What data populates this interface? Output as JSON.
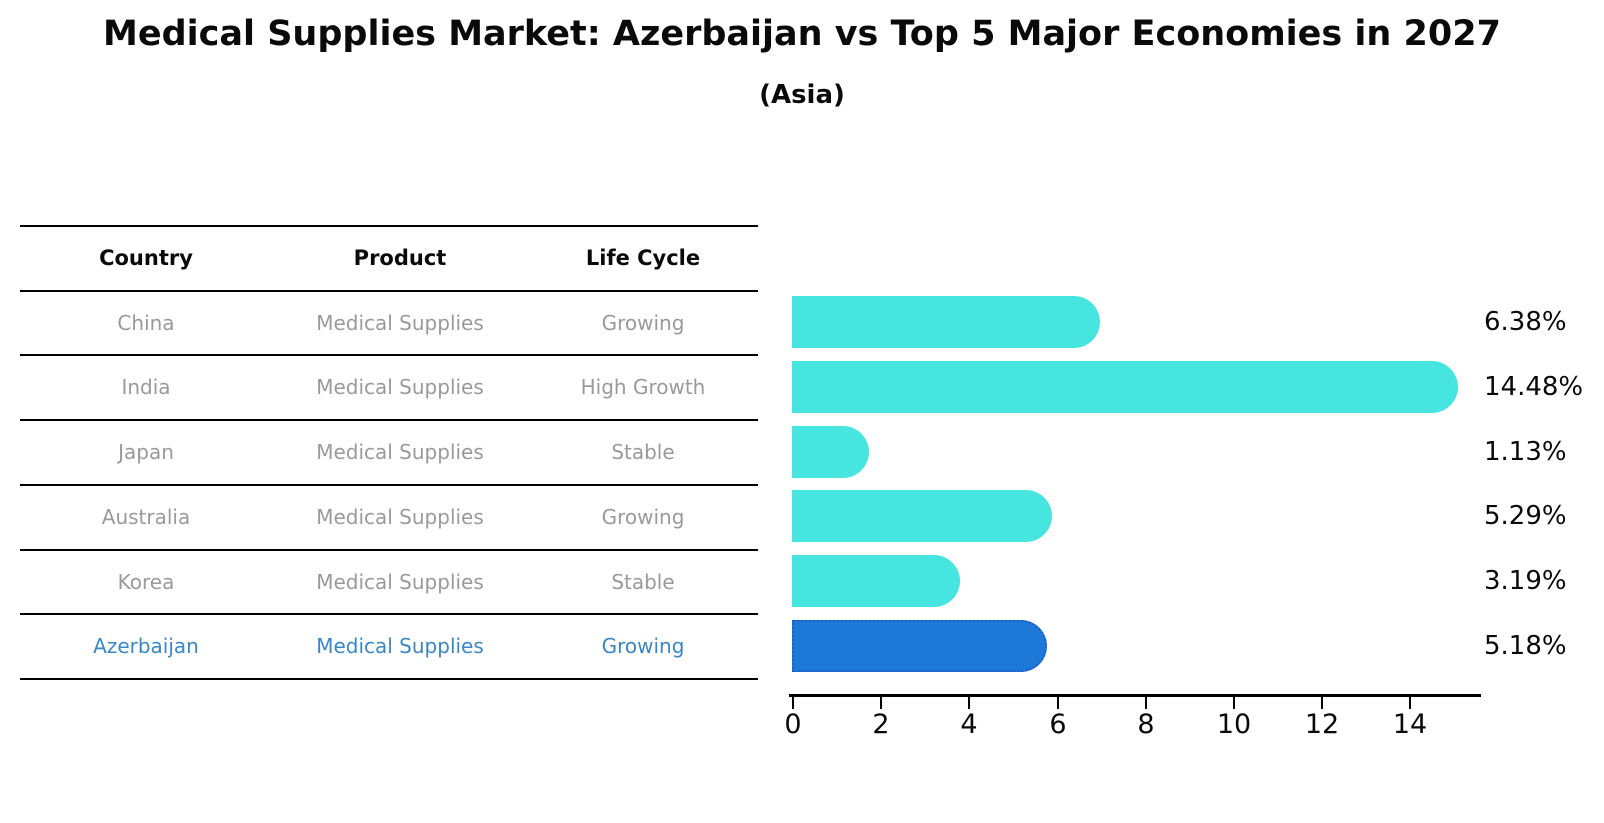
{
  "title": "Medical Supplies Market: Azerbaijan vs Top 5 Major Economies in 2027",
  "subtitle": "(Asia)",
  "table": {
    "headers": [
      "Country",
      "Product",
      "Life Cycle"
    ],
    "rows": [
      {
        "country": "China",
        "product": "Medical Supplies",
        "life_cycle": "Growing"
      },
      {
        "country": "India",
        "product": "Medical Supplies",
        "life_cycle": "High Growth"
      },
      {
        "country": "Japan",
        "product": "Medical Supplies",
        "life_cycle": "Stable"
      },
      {
        "country": "Australia",
        "product": "Medical Supplies",
        "life_cycle": "Growing"
      },
      {
        "country": "Korea",
        "product": "Medical Supplies",
        "life_cycle": "Stable"
      },
      {
        "country": "Azerbaijan",
        "product": "Medical Supplies",
        "life_cycle": "Growing"
      }
    ]
  },
  "chart_data": {
    "type": "bar",
    "orientation": "horizontal",
    "categories": [
      "China",
      "India",
      "Japan",
      "Australia",
      "Korea",
      "Azerbaijan"
    ],
    "values": [
      6.38,
      14.48,
      1.13,
      5.29,
      3.19,
      5.18
    ],
    "value_labels": [
      "6.38%",
      "14.48%",
      "1.13%",
      "5.29%",
      "3.19%",
      "5.18%"
    ],
    "highlight_index": 5,
    "xticks": [
      0,
      2,
      4,
      6,
      8,
      10,
      12,
      14
    ],
    "xlim": [
      0,
      15.6
    ],
    "grid": false,
    "legend": false,
    "xlabel": "",
    "ylabel": ""
  },
  "colors": {
    "bar": "#46e5e0",
    "highlight_bar": "#1e78d7",
    "highlight_border": "#1a5fc8",
    "row_text": "#9a9a9a",
    "highlight_row_text": "#3a87c8",
    "text": "#0a0a0a",
    "axis": "#000000"
  }
}
